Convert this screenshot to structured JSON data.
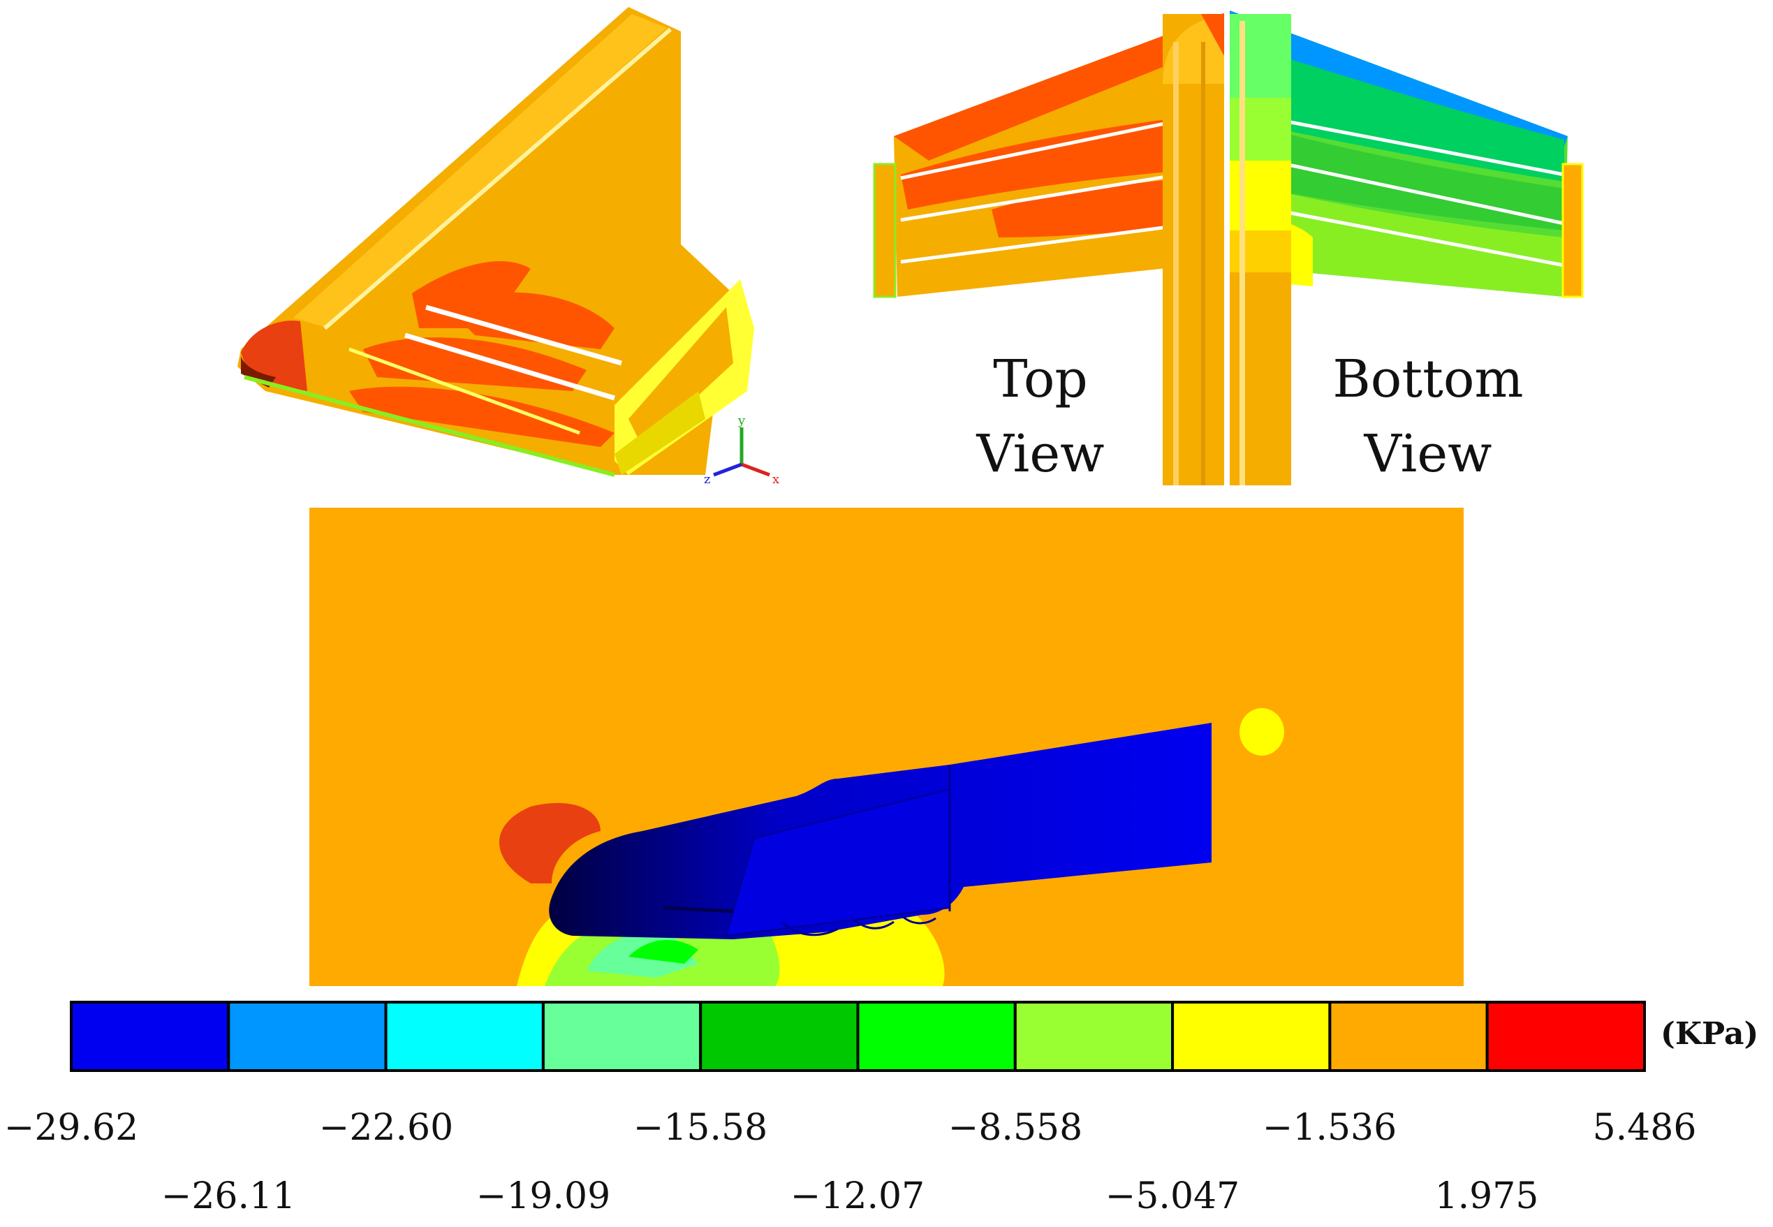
{
  "labels": {
    "top_view": "Top View",
    "bottom_view": "Bottom View"
  },
  "axis_triad": {
    "x": "x",
    "y": "y",
    "z": "z"
  },
  "colorbar": {
    "unit": "(KPa)",
    "colors": [
      "#0000F0",
      "#0096FF",
      "#00FFFF",
      "#66FF99",
      "#00C800",
      "#00FF00",
      "#99FF33",
      "#FFFF00",
      "#FFAA00",
      "#FF0000"
    ],
    "ticks_upper": [
      "−29.62",
      "−22.60",
      "−15.58",
      "−8.558",
      "−1.536",
      "5.486"
    ],
    "ticks_lower": [
      "−26.11",
      "−19.09",
      "−12.07",
      "−5.047",
      "1.975"
    ]
  }
}
